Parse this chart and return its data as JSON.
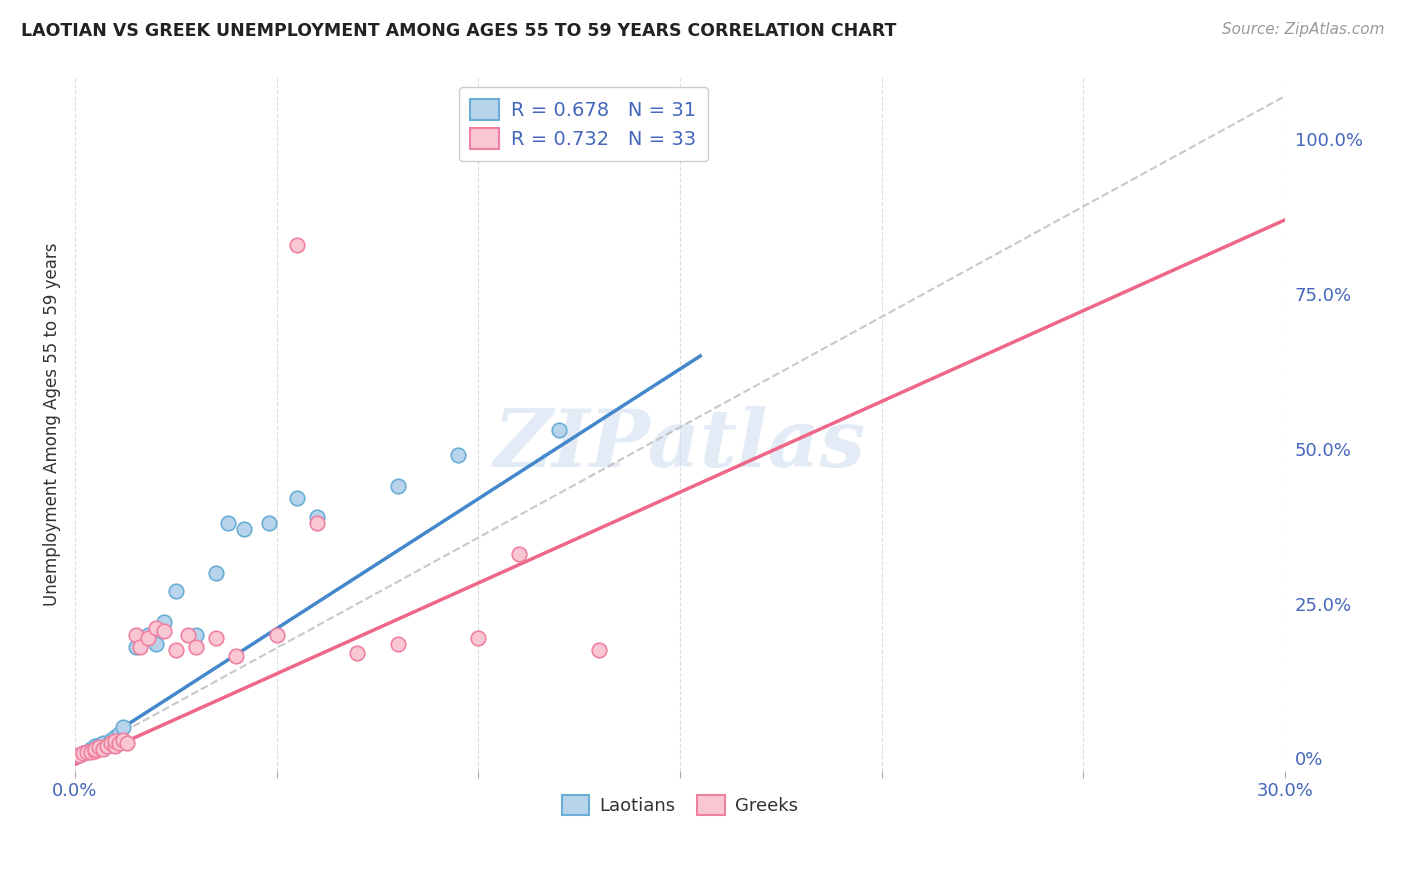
{
  "title": "LAOTIAN VS GREEK UNEMPLOYMENT AMONG AGES 55 TO 59 YEARS CORRELATION CHART",
  "source": "Source: ZipAtlas.com",
  "ylabel": "Unemployment Among Ages 55 to 59 years",
  "xlim": [
    0.0,
    0.3
  ],
  "ylim": [
    -0.02,
    1.1
  ],
  "xticks": [
    0.0,
    0.05,
    0.1,
    0.15,
    0.2,
    0.25,
    0.3
  ],
  "xticklabels": [
    "0.0%",
    "",
    "",
    "",
    "",
    "",
    "30.0%"
  ],
  "yticks_right": [
    0.0,
    0.25,
    0.5,
    0.75,
    1.0
  ],
  "yticklabels_right": [
    "0%",
    "25.0%",
    "50.0%",
    "75.0%",
    "100.0%"
  ],
  "laotian_fill_color": "#b8d4ec",
  "laotian_edge_color": "#6aaed6",
  "greek_fill_color": "#f9c6d4",
  "greek_edge_color": "#f080a0",
  "laotian_line_color": "#4488cc",
  "greek_line_color": "#ee6688",
  "ref_line_color": "#bbbbbb",
  "R_laotian": 0.678,
  "N_laotian": 31,
  "R_greek": 0.732,
  "N_greek": 33,
  "laotian_scatter_x": [
    0.001,
    0.002,
    0.003,
    0.004,
    0.004,
    0.005,
    0.005,
    0.006,
    0.006,
    0.007,
    0.008,
    0.009,
    0.01,
    0.01,
    0.011,
    0.012,
    0.015,
    0.018,
    0.02,
    0.022,
    0.025,
    0.03,
    0.035,
    0.038,
    0.042,
    0.048,
    0.055,
    0.06,
    0.08,
    0.095,
    0.12
  ],
  "laotian_scatter_y": [
    0.005,
    0.008,
    0.01,
    0.012,
    0.015,
    0.015,
    0.02,
    0.018,
    0.022,
    0.025,
    0.02,
    0.03,
    0.025,
    0.035,
    0.04,
    0.05,
    0.18,
    0.2,
    0.185,
    0.22,
    0.27,
    0.2,
    0.3,
    0.38,
    0.37,
    0.38,
    0.42,
    0.39,
    0.44,
    0.49,
    0.53
  ],
  "greek_scatter_x": [
    0.001,
    0.002,
    0.003,
    0.004,
    0.005,
    0.005,
    0.006,
    0.007,
    0.008,
    0.009,
    0.01,
    0.01,
    0.011,
    0.012,
    0.013,
    0.015,
    0.016,
    0.018,
    0.02,
    0.022,
    0.025,
    0.028,
    0.03,
    0.035,
    0.04,
    0.05,
    0.055,
    0.06,
    0.07,
    0.08,
    0.1,
    0.11,
    0.13
  ],
  "greek_scatter_y": [
    0.005,
    0.008,
    0.01,
    0.01,
    0.012,
    0.015,
    0.018,
    0.015,
    0.02,
    0.025,
    0.02,
    0.028,
    0.025,
    0.03,
    0.025,
    0.2,
    0.18,
    0.195,
    0.21,
    0.205,
    0.175,
    0.2,
    0.18,
    0.195,
    0.165,
    0.2,
    0.83,
    0.38,
    0.17,
    0.185,
    0.195,
    0.33,
    0.175
  ],
  "laotian_line_x": [
    0.0,
    0.155
  ],
  "laotian_line_y": [
    0.0,
    0.65
  ],
  "greek_line_x": [
    0.0,
    0.3
  ],
  "greek_line_y": [
    -0.01,
    0.87
  ],
  "ref_line_x": [
    0.0,
    0.3
  ],
  "ref_line_y": [
    0.0,
    1.07
  ],
  "watermark": "ZIPatlas",
  "background_color": "#ffffff",
  "grid_color": "#dddddd",
  "title_color": "#222222",
  "axis_label_color": "#333333",
  "tick_color": "#4466bb",
  "source_color": "#999999"
}
